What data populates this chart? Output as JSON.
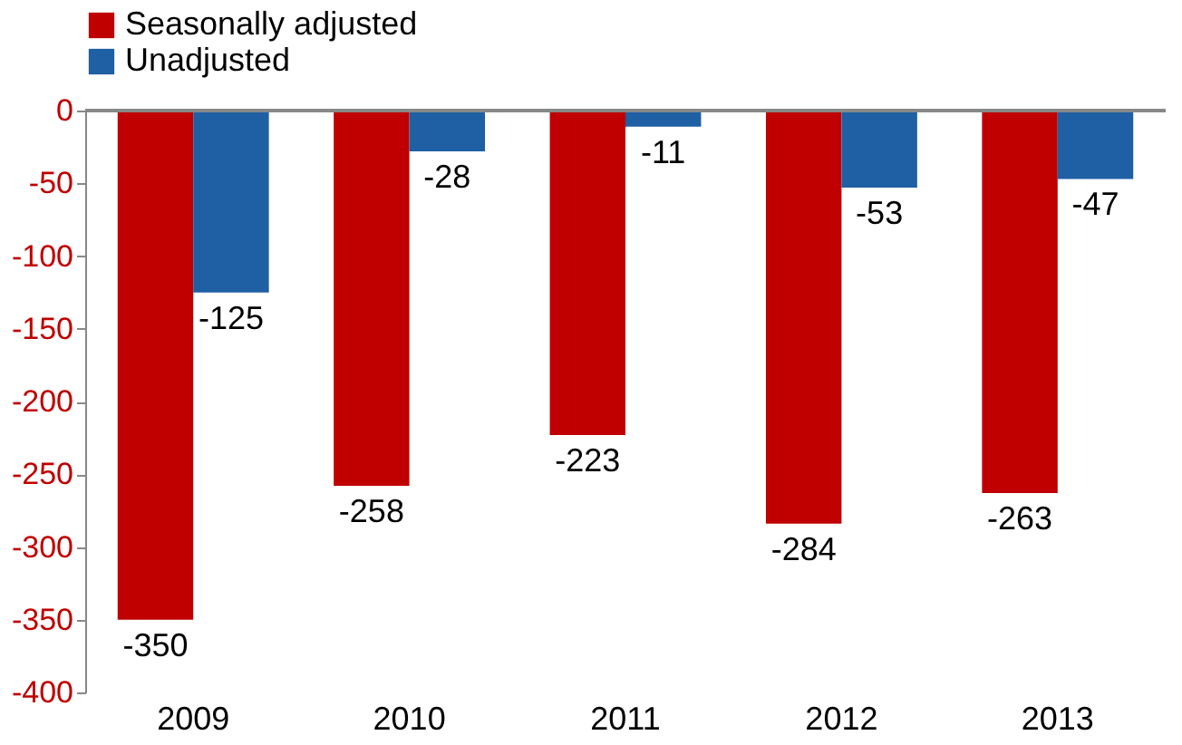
{
  "chart_data": {
    "type": "bar",
    "categories": [
      "2009",
      "2010",
      "2011",
      "2012",
      "2013"
    ],
    "series": [
      {
        "name": "Seasonally adjusted",
        "color": "#c00000",
        "values": [
          -350,
          -258,
          -223,
          -284,
          -263
        ]
      },
      {
        "name": "Unadjusted",
        "color": "#1f5fa3",
        "values": [
          -125,
          -28,
          -11,
          -53,
          -47
        ]
      }
    ],
    "ylim": [
      -400,
      0
    ],
    "yticks": [
      -400,
      -350,
      -300,
      -250,
      -200,
      -150,
      -100,
      -50,
      0
    ],
    "grid": false,
    "legend": "top",
    "data_labels": true
  }
}
